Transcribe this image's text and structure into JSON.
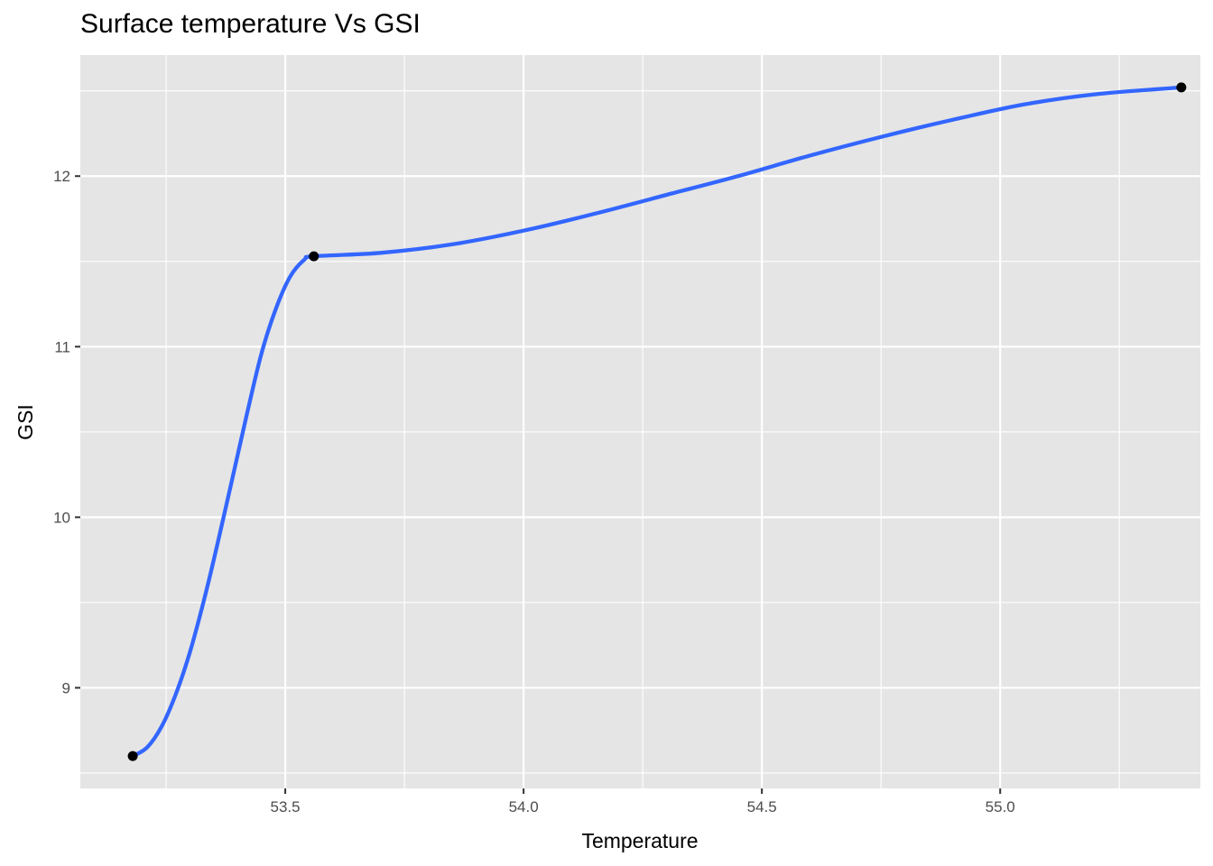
{
  "chart_data": {
    "type": "line",
    "title": "Surface temperature Vs GSI",
    "xlabel": "Temperature",
    "ylabel": "GSI",
    "xlim": [
      53.07,
      55.42
    ],
    "ylim": [
      8.41,
      12.71
    ],
    "x_ticks": [
      53.5,
      54.0,
      54.5,
      55.0
    ],
    "x_tick_labels": [
      "53.5",
      "54.0",
      "54.5",
      "55.0"
    ],
    "x_minor_ticks": [
      53.25,
      53.75,
      54.25,
      54.75,
      55.25
    ],
    "y_ticks": [
      9,
      10,
      11,
      12
    ],
    "y_tick_labels": [
      "9",
      "10",
      "11",
      "12"
    ],
    "y_minor_ticks": [
      8.5,
      9.5,
      10.5,
      11.5,
      12.5
    ],
    "grid": true,
    "background": "#e5e5e5",
    "gridline_color": "#ffffff",
    "points": [
      {
        "x": 53.18,
        "y": 8.6
      },
      {
        "x": 53.56,
        "y": 11.53
      },
      {
        "x": 55.38,
        "y": 12.52
      }
    ],
    "series": [
      {
        "type": "smooth",
        "color": "#3366ff",
        "x": [
          53.18,
          53.21,
          53.24,
          53.27,
          53.3,
          53.33,
          53.36,
          53.39,
          53.42,
          53.45,
          53.48,
          53.51,
          53.54,
          53.56,
          53.7,
          53.85,
          54.0,
          54.15,
          54.3,
          54.45,
          54.6,
          54.75,
          54.9,
          55.05,
          55.2,
          55.38
        ],
        "y": [
          8.6,
          8.65,
          8.77,
          8.96,
          9.21,
          9.52,
          9.87,
          10.24,
          10.61,
          10.96,
          11.22,
          11.41,
          11.51,
          11.53,
          11.55,
          11.6,
          11.68,
          11.78,
          11.89,
          12.0,
          12.12,
          12.23,
          12.33,
          12.42,
          12.48,
          12.52
        ]
      }
    ],
    "point_color": "#000000"
  }
}
